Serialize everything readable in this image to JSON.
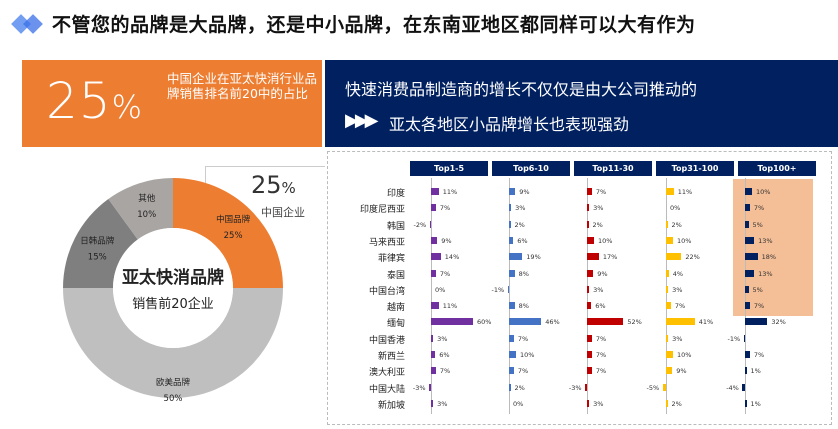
{
  "title": "不管您的品牌是大品牌，还是中小品牌，在东南亚地区都同样可以大有作为",
  "orange_box": {
    "pct": "25",
    "pct_sign": "%",
    "text": "中国企业在亚太快消行业品牌销售排名前20中的占比"
  },
  "navy_box": {
    "line1": "快速消费品制造商的增长不仅仅是由大公司推动的",
    "line2": "亚太各地区小品牌增长也表现强劲",
    "arrow_icon": "triple-chevron-right-icon"
  },
  "callout": {
    "pct": "25",
    "pct_sign": "%",
    "label": "中国企业"
  },
  "donut": {
    "center_title": "亚太快消品牌",
    "center_sub": "销售前20企业",
    "slices": [
      {
        "name": "中国品牌",
        "value": 25,
        "label": "25%",
        "color": "#ED7D31"
      },
      {
        "name": "欧美品牌",
        "value": 50,
        "label": "50%",
        "color": "#BFBFBF"
      },
      {
        "name": "日韩品牌",
        "value": 15,
        "label": "15%",
        "color": "#7F7F7F"
      },
      {
        "name": "其他",
        "value": 10,
        "label": "10%",
        "color": "#A9A5A3"
      }
    ]
  },
  "chart_data": {
    "type": "bar",
    "title": "",
    "columns": [
      "Top1-5",
      "Top6-10",
      "Top11-30",
      "Top31-100",
      "Top100+"
    ],
    "colors": [
      "#7030A0",
      "#4472C4",
      "#C00000",
      "#FFC000",
      "#002060"
    ],
    "highlight_color": "#F4BE96",
    "rows": [
      {
        "name": "印度",
        "values": [
          11,
          9,
          7,
          11,
          10
        ]
      },
      {
        "name": "印度尼西亚",
        "values": [
          7,
          3,
          3,
          0,
          7
        ]
      },
      {
        "name": "韩国",
        "values": [
          -2,
          2,
          2,
          2,
          5
        ]
      },
      {
        "name": "马来西亚",
        "values": [
          9,
          6,
          10,
          10,
          13
        ]
      },
      {
        "name": "菲律宾",
        "values": [
          14,
          19,
          17,
          22,
          18
        ]
      },
      {
        "name": "泰国",
        "values": [
          7,
          8,
          9,
          4,
          13
        ]
      },
      {
        "name": "中国台湾",
        "values": [
          0,
          -1,
          3,
          3,
          5
        ]
      },
      {
        "name": "越南",
        "values": [
          11,
          8,
          6,
          7,
          7
        ]
      },
      {
        "name": "缅甸",
        "values": [
          60,
          46,
          52,
          41,
          32
        ]
      },
      {
        "name": "中国香港",
        "values": [
          3,
          7,
          7,
          3,
          -1
        ]
      },
      {
        "name": "新西兰",
        "values": [
          6,
          10,
          7,
          10,
          7
        ]
      },
      {
        "name": "澳大利亚",
        "values": [
          7,
          7,
          7,
          9,
          1
        ]
      },
      {
        "name": "中国大陆",
        "values": [
          -3,
          2,
          -3,
          -5,
          -4
        ]
      },
      {
        "name": "新加坡",
        "values": [
          3,
          0,
          3,
          2,
          1
        ]
      }
    ],
    "unit": "%"
  }
}
